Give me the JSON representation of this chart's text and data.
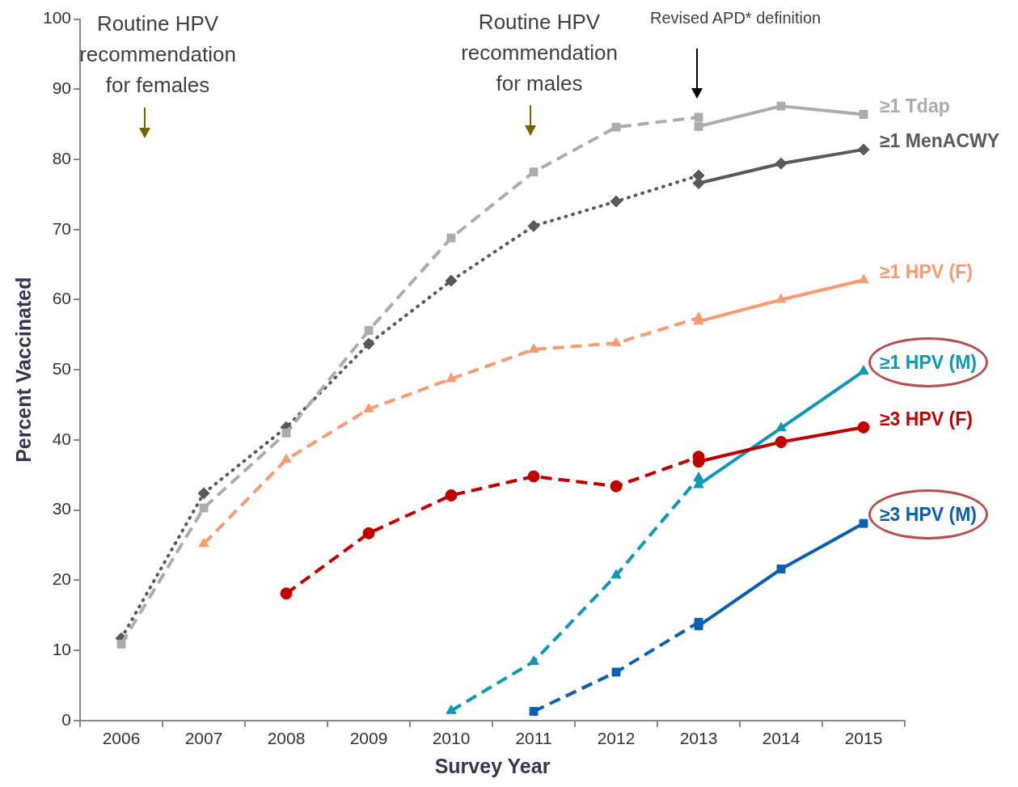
{
  "chart_data": {
    "type": "line",
    "categories": [
      "2006",
      "2007",
      "2008",
      "2009",
      "2010",
      "2011",
      "2012",
      "2013",
      "2014",
      "2015"
    ],
    "xlabel": "Survey Year",
    "ylabel": "Percent Vaccinated",
    "ylim": [
      0,
      100
    ],
    "yticks": [
      0,
      10,
      20,
      30,
      40,
      50,
      60,
      70,
      80,
      90,
      100
    ],
    "grid": false,
    "legend": false,
    "annotations": [
      "Routine HPV recommendation for females",
      "Routine HPV recommendation for males",
      "Revised APD* definition"
    ],
    "series": [
      {
        "color": "#a8aeaa",
        "marker": "square",
        "line_style": "dashed",
        "values": [
          10.9,
          30.3,
          41.0,
          55.6,
          68.8,
          78.2,
          84.6,
          86.0,
          null,
          null
        ]
      },
      {
        "name": "≥1 Tdap",
        "color": "#a8aeaa",
        "marker": "square",
        "line_style": "solid",
        "values": [
          null,
          null,
          null,
          null,
          null,
          null,
          null,
          84.7,
          87.6,
          86.4
        ]
      },
      {
        "color": "#595959",
        "marker": "diamond",
        "line_style": "dotted",
        "values": [
          11.7,
          32.4,
          41.8,
          53.7,
          62.7,
          70.5,
          74.0,
          77.7,
          null,
          null
        ]
      },
      {
        "name": "≥1 MenACWY",
        "color": "#595959",
        "marker": "diamond",
        "line_style": "solid",
        "values": [
          null,
          null,
          null,
          null,
          null,
          null,
          null,
          76.6,
          79.4,
          81.4
        ]
      },
      {
        "color": "#f99a72",
        "marker": "triangle",
        "line_style": "dashed",
        "values": [
          null,
          25.2,
          37.2,
          44.4,
          48.7,
          52.9,
          53.8,
          57.4,
          null,
          null
        ]
      },
      {
        "name": "≥1 HPV (F)",
        "color": "#f99a72",
        "marker": "triangle",
        "line_style": "solid",
        "values": [
          null,
          null,
          null,
          null,
          null,
          null,
          null,
          56.9,
          60.0,
          62.8
        ]
      },
      {
        "color": "#c00000",
        "marker": "circle",
        "line_style": "dashed",
        "values": [
          null,
          null,
          18.1,
          26.7,
          32.1,
          34.8,
          33.4,
          37.6,
          null,
          null
        ]
      },
      {
        "name": "≥3 HPV (F)",
        "color": "#c00000",
        "marker": "circle",
        "line_style": "solid",
        "values": [
          null,
          null,
          null,
          null,
          null,
          null,
          null,
          36.9,
          39.7,
          41.8
        ]
      },
      {
        "color": "#0f97b8",
        "marker": "triangle",
        "line_style": "dashed",
        "values": [
          null,
          null,
          null,
          null,
          1.4,
          8.4,
          20.7,
          34.6,
          null,
          null
        ]
      },
      {
        "name": "≥1 HPV (M)",
        "color": "#0f97b8",
        "marker": "triangle",
        "line_style": "solid",
        "values": [
          null,
          null,
          null,
          null,
          null,
          null,
          null,
          33.6,
          41.7,
          49.8
        ]
      },
      {
        "color": "#0b5fb0",
        "marker": "square",
        "line_style": "dashed",
        "values": [
          null,
          null,
          null,
          null,
          null,
          1.3,
          6.9,
          14.0,
          null,
          null
        ]
      },
      {
        "name": "≥3 HPV (M)",
        "color": "#0b5fb0",
        "marker": "square",
        "line_style": "solid",
        "values": [
          null,
          null,
          null,
          null,
          null,
          null,
          null,
          13.5,
          21.6,
          28.1
        ]
      }
    ]
  }
}
